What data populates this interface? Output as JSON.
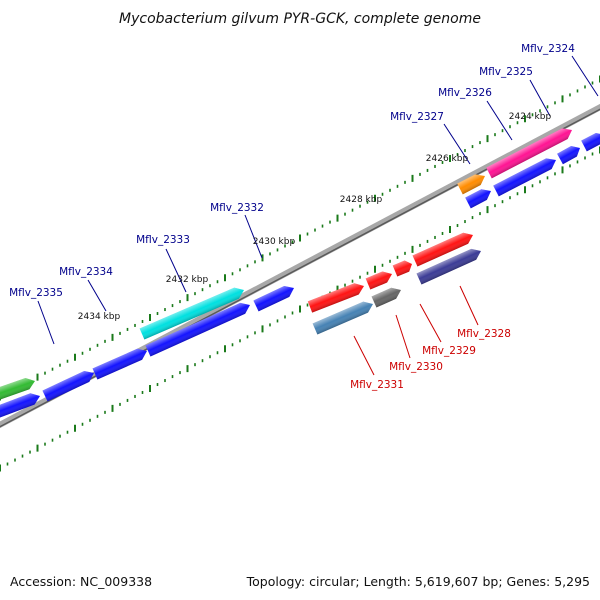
{
  "title": "Mycobacterium gilvum PYR-GCK, complete genome",
  "footer": {
    "accession": "Accession: NC_009338",
    "summary": "Topology: circular; Length: 5,619,607 bp; Genes: 5,295"
  },
  "colors": {
    "forward_label": "#00008b",
    "reverse_label": "#cc0000",
    "tick": "#1a7a1a",
    "backbone": "#888888"
  },
  "kbp_labels": [
    "2424 kbp",
    "2426 kbp",
    "2428 kbp",
    "2430 kbp",
    "2432 kbp",
    "2434 kbp"
  ],
  "genes_forward": [
    {
      "name": "Mflv_2324",
      "color": "#1414ff"
    },
    {
      "name": "Mflv_2325",
      "color": "#ff1493"
    },
    {
      "name": "Mflv_2326",
      "color": "#1414ff"
    },
    {
      "name": "Mflv_2327",
      "color": "#ff8c00"
    },
    {
      "name": "Mflv_2332",
      "color": "#1414ff"
    },
    {
      "name": "Mflv_2333",
      "color": "#00e0e0"
    },
    {
      "name": "Mflv_2334",
      "color": "#1414ff"
    },
    {
      "name": "Mflv_2335",
      "color": "#1414ff"
    }
  ],
  "genes_reverse": [
    {
      "name": "Mflv_2328",
      "color": "#3c3c96"
    },
    {
      "name": "Mflv_2329",
      "color": "#ff1414"
    },
    {
      "name": "Mflv_2330",
      "color": "#666666"
    },
    {
      "name": "Mflv_2331",
      "color": "#4682b4"
    }
  ]
}
